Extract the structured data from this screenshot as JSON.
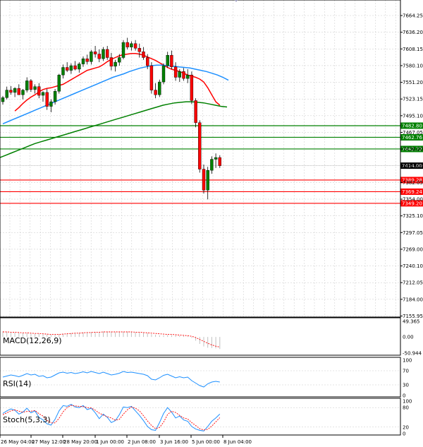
{
  "chart_data": {
    "type": "candlestick",
    "main": {
      "y_ticks": [
        "7664.25",
        "7636.20",
        "7608.15",
        "7580.10",
        "7551.20",
        "7523.15",
        "7495.10",
        "7467.05",
        "7438.00",
        "7410.00",
        "7382.05",
        "7354.00",
        "7325.10",
        "7297.05",
        "7269.00",
        "7240.10",
        "7212.05",
        "7184.00",
        "7155.95"
      ],
      "ylim": [
        7155.95,
        7682
      ],
      "current_price": "7414.00",
      "horizontal_levels": [
        {
          "label": "7482.80",
          "value": 7482.8,
          "color": "#008000"
        },
        {
          "label": "7462.76",
          "value": 7462.76,
          "color": "#008000"
        },
        {
          "label": "7442.72",
          "value": 7442.72,
          "color": "#008000"
        },
        {
          "label": "7389.28",
          "value": 7389.28,
          "color": "#ff0000"
        },
        {
          "label": "7369.24",
          "value": 7369.24,
          "color": "#ff0000"
        },
        {
          "label": "7349.20",
          "value": 7349.2,
          "color": "#ff0000"
        }
      ],
      "candles": [
        [
          7524,
          7534,
          7519,
          7531
        ],
        [
          7531,
          7550,
          7528,
          7544
        ],
        [
          7544,
          7551,
          7536,
          7540
        ],
        [
          7540,
          7549,
          7532,
          7547
        ],
        [
          7547,
          7554,
          7540,
          7536
        ],
        [
          7536,
          7546,
          7528,
          7544
        ],
        [
          7544,
          7566,
          7540,
          7560
        ],
        [
          7560,
          7563,
          7541,
          7545
        ],
        [
          7545,
          7554,
          7538,
          7550
        ],
        [
          7550,
          7556,
          7530,
          7535
        ],
        [
          7535,
          7542,
          7524,
          7540
        ],
        [
          7540,
          7546,
          7510,
          7516
        ],
        [
          7516,
          7528,
          7506,
          7524
        ],
        [
          7524,
          7546,
          7519,
          7542
        ],
        [
          7542,
          7572,
          7538,
          7570
        ],
        [
          7570,
          7588,
          7564,
          7583
        ],
        [
          7583,
          7592,
          7575,
          7578
        ],
        [
          7578,
          7590,
          7572,
          7586
        ],
        [
          7586,
          7594,
          7578,
          7580
        ],
        [
          7580,
          7592,
          7574,
          7589
        ],
        [
          7589,
          7602,
          7584,
          7598
        ],
        [
          7598,
          7605,
          7588,
          7593
        ],
        [
          7593,
          7613,
          7588,
          7610
        ],
        [
          7610,
          7620,
          7600,
          7606
        ],
        [
          7606,
          7614,
          7592,
          7598
        ],
        [
          7598,
          7618,
          7594,
          7614
        ],
        [
          7614,
          7620,
          7596,
          7600
        ],
        [
          7600,
          7608,
          7578,
          7585
        ],
        [
          7585,
          7596,
          7576,
          7592
        ],
        [
          7592,
          7606,
          7586,
          7600
        ],
        [
          7600,
          7630,
          7597,
          7626
        ],
        [
          7626,
          7634,
          7614,
          7618
        ],
        [
          7618,
          7628,
          7612,
          7624
        ],
        [
          7624,
          7630,
          7612,
          7616
        ],
        [
          7616,
          7624,
          7600,
          7610
        ],
        [
          7610,
          7618,
          7596,
          7600
        ],
        [
          7600,
          7606,
          7580,
          7586
        ],
        [
          7586,
          7592,
          7538,
          7544
        ],
        [
          7544,
          7556,
          7530,
          7536
        ],
        [
          7536,
          7562,
          7532,
          7558
        ],
        [
          7558,
          7590,
          7554,
          7586
        ],
        [
          7586,
          7610,
          7582,
          7604
        ],
        [
          7604,
          7612,
          7580,
          7584
        ],
        [
          7584,
          7592,
          7560,
          7566
        ],
        [
          7566,
          7580,
          7558,
          7576
        ],
        [
          7576,
          7582,
          7560,
          7564
        ],
        [
          7564,
          7580,
          7556,
          7570
        ],
        [
          7570,
          7576,
          7520,
          7526
        ],
        [
          7526,
          7530,
          7480,
          7488
        ],
        [
          7488,
          7492,
          7402,
          7408
        ],
        [
          7408,
          7416,
          7366,
          7372
        ],
        [
          7372,
          7412,
          7356,
          7406
        ],
        [
          7406,
          7430,
          7400,
          7425
        ],
        [
          7425,
          7435,
          7410,
          7428
        ],
        [
          7428,
          7432,
          7410,
          7414
        ]
      ],
      "ma_red": [
        7508,
        7514,
        7521,
        7527,
        7532,
        7536,
        7541,
        7545,
        7547,
        7548,
        7550,
        7552,
        7554,
        7558,
        7562,
        7566,
        7570,
        7574,
        7578,
        7580,
        7582,
        7584,
        7588,
        7593,
        7597,
        7600,
        7603,
        7605,
        7606,
        7607,
        7607,
        7606,
        7604,
        7601,
        7598,
        7595,
        7591,
        7587,
        7583,
        7580,
        7578,
        7576,
        7573,
        7570,
        7568,
        7566,
        7563,
        7558,
        7548,
        7536,
        7524,
        7518
      ],
      "ma_blue": [
        7486,
        7490,
        7494,
        7498,
        7502,
        7506,
        7510,
        7514,
        7518,
        7522,
        7526,
        7530,
        7534,
        7538,
        7542,
        7546,
        7550,
        7554,
        7558,
        7562,
        7566,
        7569,
        7572,
        7576,
        7579,
        7582,
        7584,
        7586,
        7587,
        7587,
        7586,
        7585,
        7584,
        7583,
        7582,
        7580,
        7578,
        7576,
        7573,
        7570,
        7566,
        7561
      ],
      "ma_green": [
        7428,
        7432,
        7436,
        7440,
        7444,
        7448,
        7452,
        7455,
        7458,
        7461,
        7464,
        7467,
        7470,
        7473,
        7476,
        7479,
        7482,
        7485,
        7488,
        7491,
        7494,
        7497,
        7500,
        7503,
        7506,
        7509,
        7512,
        7515,
        7518,
        7520,
        7522,
        7523,
        7524,
        7524,
        7523,
        7522,
        7520,
        7518,
        7516,
        7515
      ]
    },
    "macd": {
      "title": "MACD(12,26,9)",
      "y_ticks": [
        "49.365",
        "0.00",
        "-50.944"
      ],
      "ylim": [
        -50.944,
        49.365
      ],
      "hist": [
        18,
        16,
        15,
        14,
        13,
        12,
        12,
        11,
        10,
        10,
        9,
        8,
        7,
        7,
        8,
        10,
        11,
        12,
        13,
        13,
        14,
        14,
        15,
        16,
        16,
        17,
        17,
        16,
        15,
        15,
        16,
        17,
        16,
        15,
        14,
        13,
        12,
        9,
        7,
        5,
        5,
        6,
        6,
        5,
        4,
        3,
        2,
        -3,
        -12,
        -22,
        -30,
        -34,
        -35,
        -36,
        -38
      ],
      "signal": [
        16,
        16,
        15,
        15,
        14,
        13,
        13,
        12,
        11,
        11,
        10,
        9,
        8,
        8,
        8,
        9,
        10,
        11,
        12,
        12,
        13,
        14,
        14,
        15,
        15,
        16,
        16,
        16,
        16,
        16,
        16,
        16,
        16,
        15,
        15,
        14,
        13,
        12,
        11,
        10,
        9,
        8,
        8,
        7,
        6,
        5,
        4,
        2,
        -2,
        -8,
        -14,
        -20,
        -25,
        -29,
        -32
      ]
    },
    "rsi": {
      "title": "RSI(14)",
      "y_ticks": [
        "100",
        "70",
        "30",
        "0"
      ],
      "ylim": [
        0,
        100
      ],
      "values": [
        52,
        55,
        58,
        56,
        53,
        57,
        62,
        58,
        60,
        54,
        56,
        50,
        52,
        58,
        64,
        66,
        63,
        65,
        62,
        64,
        67,
        64,
        68,
        65,
        62,
        66,
        62,
        58,
        60,
        63,
        68,
        65,
        66,
        64,
        62,
        60,
        56,
        46,
        44,
        50,
        57,
        60,
        55,
        50,
        53,
        50,
        52,
        42,
        35,
        28,
        24,
        33,
        38,
        40,
        38
      ]
    },
    "stoch": {
      "title": "Stoch(5,3,3)",
      "y_ticks": [
        "100",
        "80",
        "20",
        "0"
      ],
      "ylim": [
        0,
        100
      ],
      "k": [
        62,
        70,
        76,
        72,
        60,
        66,
        78,
        64,
        70,
        50,
        42,
        30,
        26,
        44,
        70,
        86,
        84,
        90,
        82,
        80,
        86,
        74,
        78,
        64,
        46,
        60,
        50,
        34,
        40,
        58,
        82,
        80,
        84,
        70,
        56,
        40,
        22,
        12,
        10,
        34,
        62,
        80,
        66,
        48,
        54,
        42,
        38,
        22,
        14,
        10,
        8,
        22,
        38,
        48,
        60
      ],
      "d": [
        58,
        64,
        70,
        73,
        69,
        66,
        68,
        69,
        71,
        61,
        54,
        41,
        33,
        33,
        47,
        67,
        80,
        87,
        85,
        84,
        83,
        80,
        79,
        72,
        63,
        57,
        52,
        48,
        41,
        44,
        60,
        73,
        82,
        78,
        70,
        55,
        39,
        25,
        15,
        19,
        35,
        59,
        69,
        65,
        56,
        48,
        45,
        34,
        25,
        15,
        11,
        13,
        23,
        36,
        49
      ]
    },
    "x_ticks": [
      {
        "label": "26 May 04:00",
        "index": 0
      },
      {
        "label": "27 May 12:00",
        "index": 5
      },
      {
        "label": "28 May 20:00",
        "index": 11
      },
      {
        "label": "1 Jun 00:00",
        "index": 17
      },
      {
        "label": "2 Jun 08:00",
        "index": 23
      },
      {
        "label": "3 Jun 16:00",
        "index": 29
      },
      {
        "label": "5 Jun 00:00",
        "index": 35
      },
      {
        "label": "8 Jun 04:00",
        "index": 41
      }
    ],
    "colors": {
      "bull": "#008000",
      "bear": "#ff0000",
      "ma_red": "#ff0000",
      "ma_blue": "#1e90ff",
      "ma_green": "#008000",
      "osc_line": "#1e90ff",
      "signal": "#ff0000",
      "grid": "#c8c8c8",
      "current_bg": "#000000"
    }
  }
}
